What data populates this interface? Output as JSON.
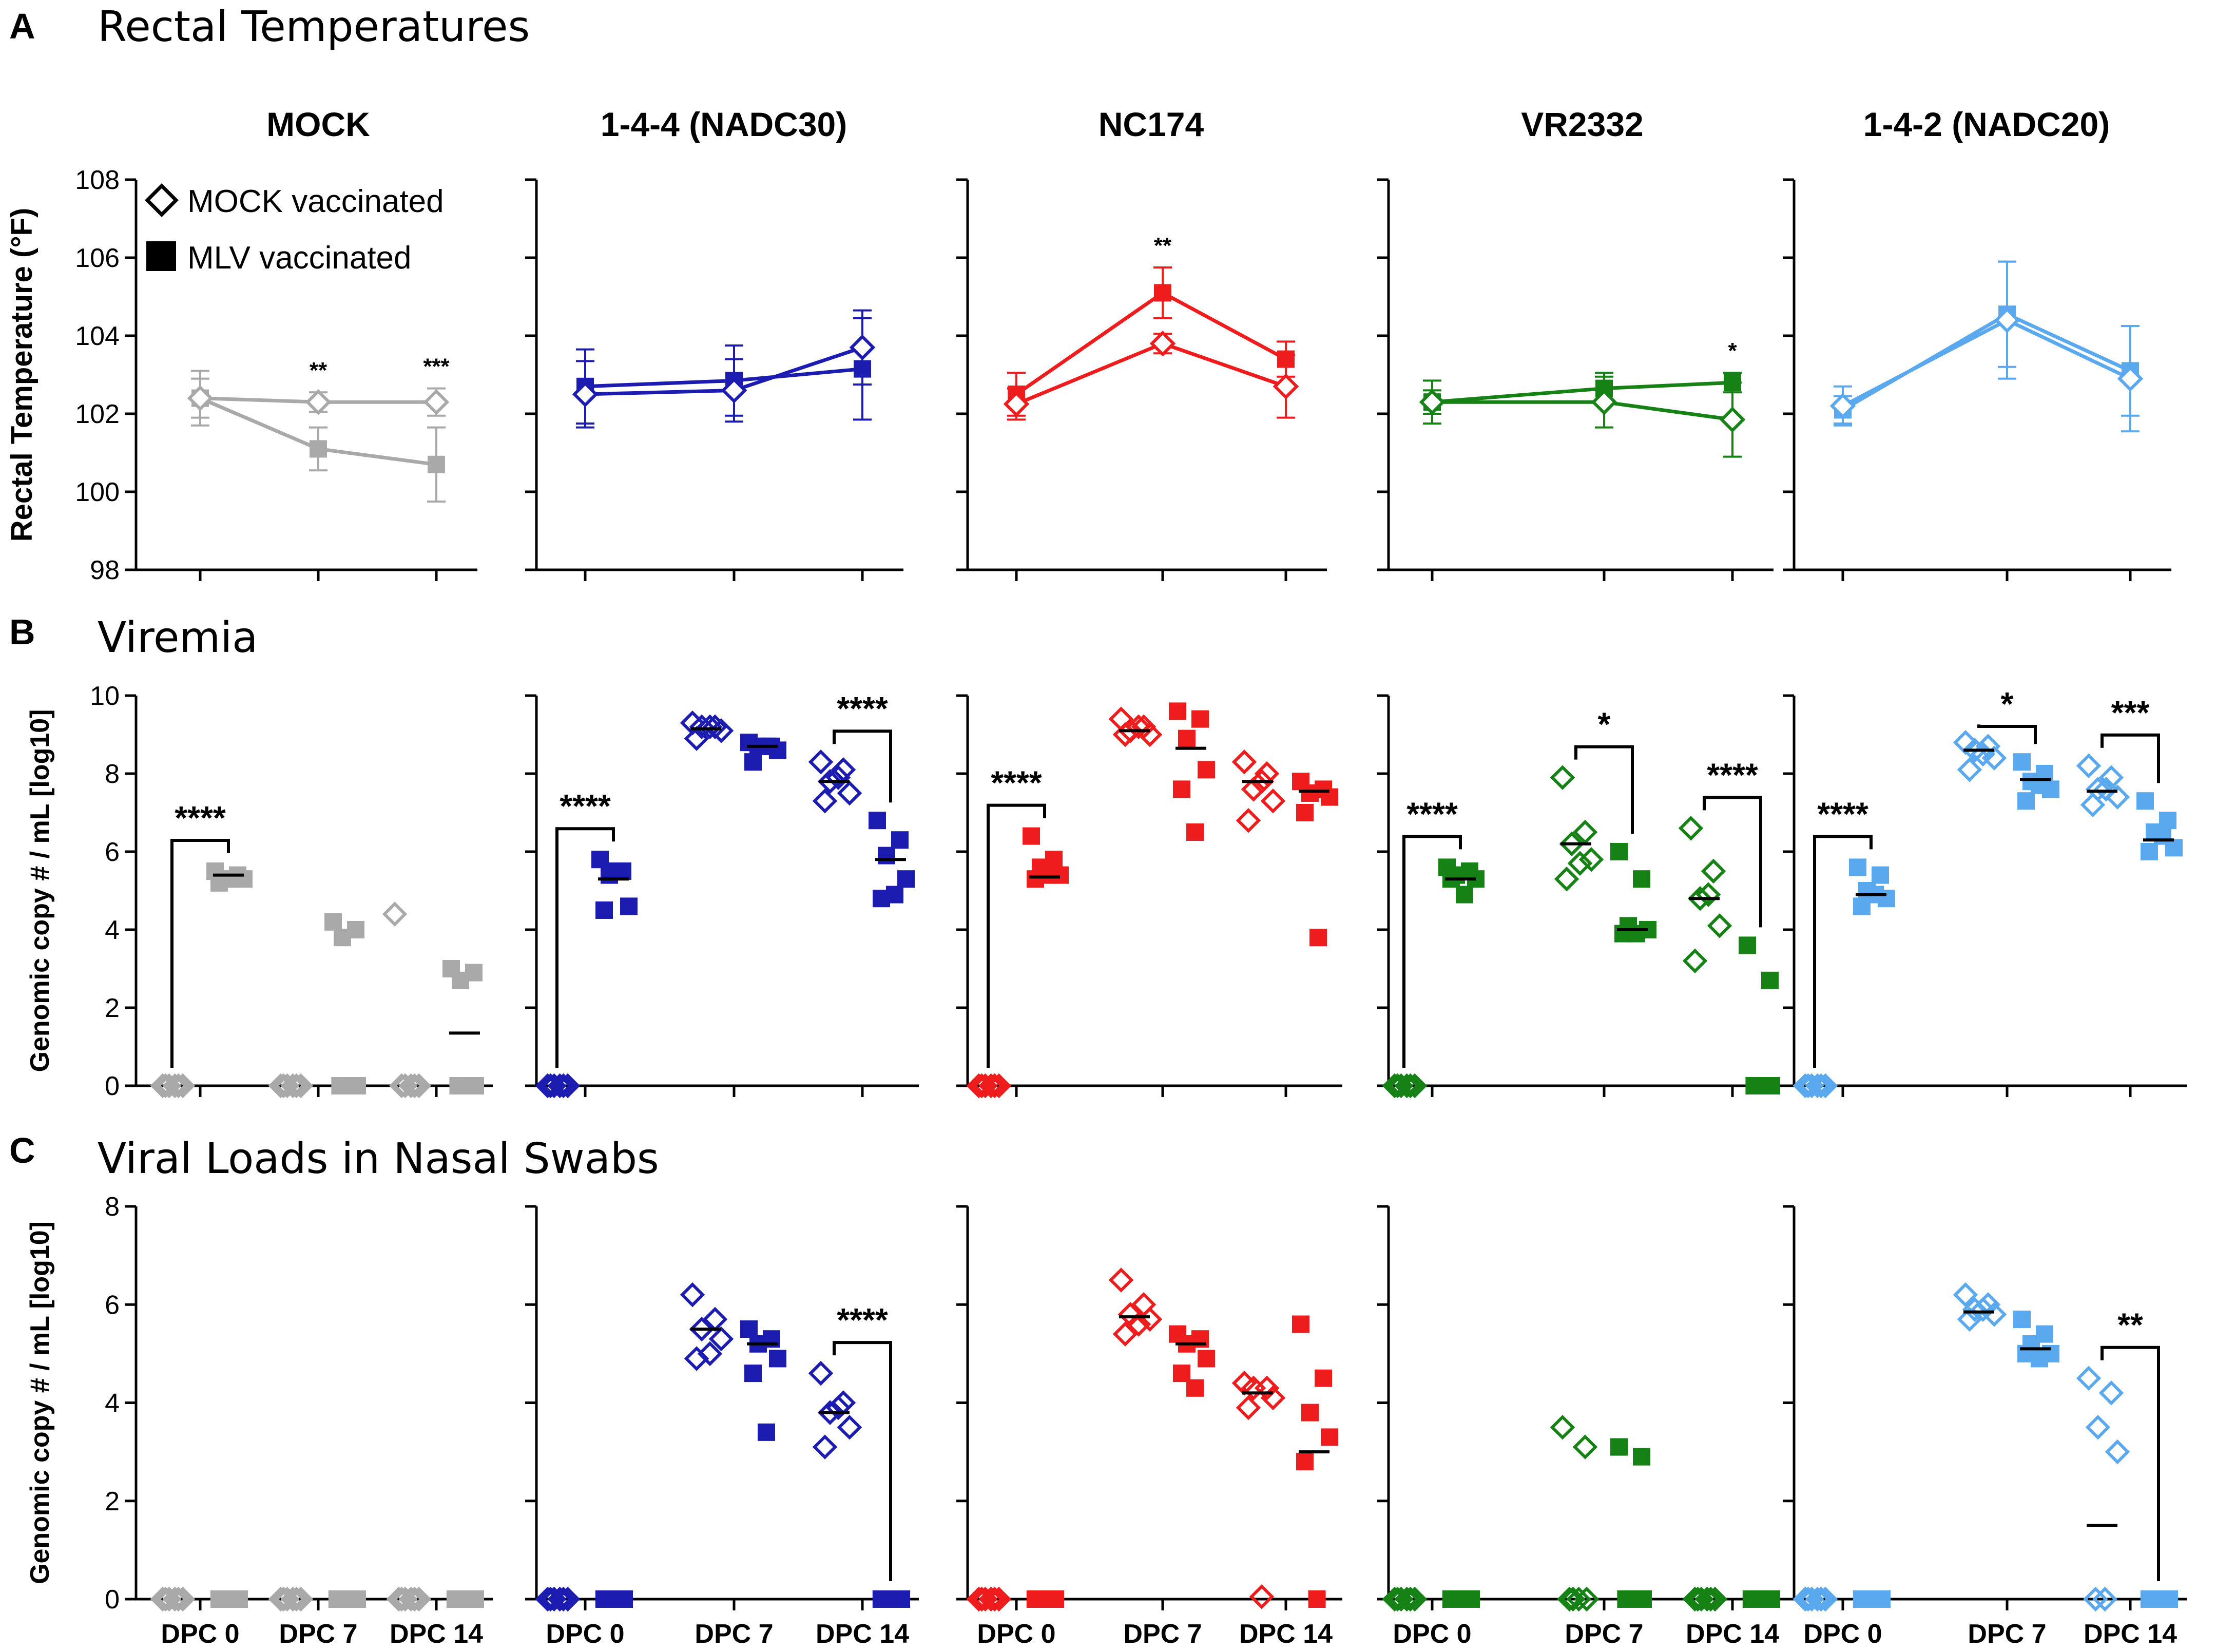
{
  "panel_labels": {
    "a": "A",
    "b": "B",
    "c": "C"
  },
  "panel_titles": {
    "a": "Rectal Temperatures",
    "b": "Viremia",
    "c": "Viral Loads in Nasal Swabs"
  },
  "legend": {
    "mock": "MOCK vaccinated",
    "mlv": "MLV   vaccinated"
  },
  "chart_data": [
    {
      "type": "line",
      "panel": "A",
      "title": "Rectal Temperatures",
      "ylabel": "Rectal  Temperature (°F)",
      "ylim": [
        98,
        108
      ],
      "yticks": [
        98,
        100,
        102,
        104,
        106,
        108
      ],
      "x": [
        "DPC 0",
        "DPC 7",
        "DPC 14"
      ],
      "groups": [
        {
          "name": "MOCK",
          "color": "#a9a9a9",
          "mock": [
            102.4,
            102.3,
            102.3
          ],
          "mock_err": [
            0.5,
            0.25,
            0.35
          ],
          "mlv": [
            102.4,
            101.1,
            100.7
          ],
          "mlv_err": [
            0.7,
            0.55,
            0.95
          ],
          "stars": [
            "",
            "**",
            "***"
          ]
        },
        {
          "name": "1-4-4 (NADC30)",
          "color": "#1c1cb0",
          "mock": [
            102.5,
            102.6,
            103.7
          ],
          "mock_err": [
            0.85,
            0.8,
            0.95
          ],
          "mlv": [
            102.7,
            102.85,
            103.15
          ],
          "mlv_err": [
            0.95,
            0.9,
            1.3
          ],
          "stars": [
            "",
            "",
            ""
          ]
        },
        {
          "name": "NC174",
          "color": "#ee1c1c",
          "mock": [
            102.25,
            103.8,
            102.7
          ],
          "mock_err": [
            0.4,
            0.25,
            0.8
          ],
          "mlv": [
            102.5,
            105.1,
            103.4
          ],
          "mlv_err": [
            0.55,
            0.65,
            0.45
          ],
          "stars": [
            "",
            "**",
            ""
          ]
        },
        {
          "name": "VR2332",
          "color": "#168216",
          "mock": [
            102.3,
            102.3,
            101.85
          ],
          "mock_err": [
            0.55,
            0.65,
            0.95
          ],
          "mlv": [
            102.3,
            102.65,
            102.8
          ],
          "mlv_err": [
            0.3,
            0.4,
            0.25
          ],
          "stars": [
            "",
            "",
            "*"
          ]
        },
        {
          "name": "1-4-2 (NADC20)",
          "color": "#5aa8ee",
          "mock": [
            102.2,
            104.4,
            102.9
          ],
          "mock_err": [
            0.5,
            1.5,
            1.35
          ],
          "mlv": [
            102.1,
            104.55,
            103.1
          ],
          "mlv_err": [
            0.35,
            1.35,
            1.15
          ],
          "stars": [
            "",
            "",
            ""
          ]
        }
      ]
    },
    {
      "type": "scatter",
      "panel": "B",
      "title": "Viremia",
      "ylabel": "Genomic copy # / mL [log10]",
      "ylim": [
        0,
        10
      ],
      "yticks": [
        0,
        2,
        4,
        6,
        8,
        10
      ],
      "x": [
        "DPC 0",
        "DPC 7",
        "DPC 14"
      ],
      "groups": [
        {
          "name": "MOCK",
          "color": "#a9a9a9",
          "mock": [
            [
              0,
              0,
              0,
              0,
              0,
              0
            ],
            [
              0,
              0,
              0,
              0,
              0,
              0
            ],
            [
              4.4,
              0,
              0,
              0,
              0,
              0
            ]
          ],
          "mlv": [
            [
              5.5,
              5.4,
              5.3,
              5.3,
              5.2,
              5.3
            ],
            [
              4.2,
              4.0,
              3.8,
              0,
              0,
              0
            ],
            [
              3.0,
              2.9,
              2.7,
              0,
              0,
              0
            ]
          ],
          "mock_mean": [
            0,
            0,
            0
          ],
          "mlv_mean": [
            5.4,
            0,
            1.35
          ],
          "brackets": [
            {
              "at": 0,
              "stars": "****"
            }
          ]
        },
        {
          "name": "1-4-4 (NADC30)",
          "color": "#1c1cb0",
          "mock": [
            [
              0,
              0,
              0,
              0,
              0,
              0
            ],
            [
              9.3,
              9.2,
              9.2,
              9.1,
              8.9,
              9.2
            ],
            [
              8.3,
              8.1,
              7.8,
              7.5,
              7.3,
              7.9
            ]
          ],
          "mlv": [
            [
              5.8,
              5.5,
              5.4,
              4.6,
              4.5,
              5.5
            ],
            [
              8.8,
              8.7,
              8.7,
              8.6,
              8.3,
              8.7
            ],
            [
              6.8,
              6.3,
              5.9,
              5.3,
              4.8,
              4.9
            ]
          ],
          "mock_mean": [
            0,
            9.15,
            7.8
          ],
          "mlv_mean": [
            5.3,
            8.7,
            5.8
          ],
          "brackets": [
            {
              "at": 0,
              "stars": "****"
            },
            {
              "at": 2,
              "stars": "****"
            }
          ]
        },
        {
          "name": "NC174",
          "color": "#ee1c1c",
          "mock": [
            [
              0,
              0,
              0,
              0,
              0,
              0
            ],
            [
              9.4,
              9.2,
              9.1,
              9.0,
              9.0,
              9.2
            ],
            [
              8.3,
              8.0,
              7.6,
              7.3,
              6.8,
              7.8
            ]
          ],
          "mlv": [
            [
              6.4,
              5.8,
              5.6,
              5.4,
              5.3,
              5.4
            ],
            [
              9.6,
              9.4,
              8.9,
              8.1,
              7.6,
              6.5
            ],
            [
              7.8,
              7.6,
              7.5,
              7.4,
              7.0,
              3.8
            ]
          ],
          "mock_mean": [
            0,
            9.1,
            7.8
          ],
          "mlv_mean": [
            5.35,
            8.65,
            7.55
          ],
          "brackets": [
            {
              "at": 0,
              "stars": "****"
            }
          ]
        },
        {
          "name": "VR2332",
          "color": "#168216",
          "mock": [
            [
              0,
              0,
              0,
              0,
              0,
              0
            ],
            [
              7.9,
              6.5,
              6.2,
              5.8,
              5.3,
              5.7
            ],
            [
              6.6,
              5.5,
              4.8,
              4.1,
              3.2,
              4.9
            ]
          ],
          "mlv": [
            [
              5.6,
              5.5,
              5.4,
              5.3,
              5.3,
              4.9
            ],
            [
              6.0,
              5.3,
              4.1,
              4.0,
              3.9,
              3.9
            ],
            [
              3.6,
              2.7,
              0,
              0,
              0,
              0
            ]
          ],
          "mock_mean": [
            0,
            6.2,
            4.8
          ],
          "mlv_mean": [
            5.3,
            4.0,
            0
          ],
          "brackets": [
            {
              "at": 0,
              "stars": "****"
            },
            {
              "at": 1,
              "stars": "*"
            },
            {
              "at": 2,
              "stars": "****"
            }
          ]
        },
        {
          "name": "1-4-2 (NADC20)",
          "color": "#5aa8ee",
          "mock": [
            [
              0,
              0,
              0,
              0,
              0,
              0
            ],
            [
              8.8,
              8.7,
              8.6,
              8.4,
              8.1,
              8.5
            ],
            [
              8.2,
              7.9,
              7.6,
              7.4,
              7.2,
              7.6
            ]
          ],
          "mlv": [
            [
              5.6,
              5.4,
              5.0,
              4.8,
              4.6,
              4.9
            ],
            [
              8.3,
              8.0,
              7.8,
              7.6,
              7.3,
              7.7
            ],
            [
              7.3,
              6.8,
              6.5,
              6.1,
              6.0,
              6.4
            ]
          ],
          "mock_mean": [
            0,
            8.6,
            7.55
          ],
          "mlv_mean": [
            4.9,
            7.85,
            6.3
          ],
          "brackets": [
            {
              "at": 0,
              "stars": "****"
            },
            {
              "at": 1,
              "stars": "*"
            },
            {
              "at": 2,
              "stars": "***"
            }
          ]
        }
      ]
    },
    {
      "type": "scatter",
      "panel": "C",
      "title": "Viral Loads in Nasal Swabs",
      "ylabel": "Genomic copy # / mL [log10]",
      "ylim": [
        0,
        8
      ],
      "yticks": [
        0,
        2,
        4,
        6,
        8
      ],
      "x": [
        "DPC 0",
        "DPC 7",
        "DPC 14"
      ],
      "groups": [
        {
          "name": "MOCK",
          "color": "#a9a9a9",
          "mock": [
            [
              0,
              0,
              0,
              0,
              0,
              0
            ],
            [
              0,
              0,
              0,
              0,
              0,
              0
            ],
            [
              0,
              0,
              0,
              0,
              0,
              0
            ]
          ],
          "mlv": [
            [
              0,
              0,
              0,
              0,
              0,
              0
            ],
            [
              0,
              0,
              0,
              0,
              0,
              0
            ],
            [
              0,
              0,
              0,
              0,
              0,
              0
            ]
          ],
          "mock_mean": [
            0,
            0,
            0
          ],
          "mlv_mean": [
            0,
            0,
            0
          ],
          "brackets": []
        },
        {
          "name": "1-4-4 (NADC30)",
          "color": "#1c1cb0",
          "mock": [
            [
              0,
              0,
              0,
              0,
              0,
              0
            ],
            [
              6.2,
              5.7,
              5.5,
              5.3,
              4.9,
              5.0
            ],
            [
              4.6,
              4.0,
              3.8,
              3.5,
              3.1,
              3.9
            ]
          ],
          "mlv": [
            [
              0,
              0,
              0,
              0,
              0,
              0
            ],
            [
              5.5,
              5.3,
              5.2,
              4.9,
              4.6,
              3.4
            ],
            [
              0,
              0,
              0,
              0,
              0,
              0
            ]
          ],
          "mock_mean": [
            0,
            5.5,
            3.8
          ],
          "mlv_mean": [
            0,
            5.2,
            0
          ],
          "brackets": [
            {
              "at": 2,
              "stars": "****"
            }
          ]
        },
        {
          "name": "NC174",
          "color": "#ee1c1c",
          "mock": [
            [
              0,
              0,
              0,
              0,
              0,
              0
            ],
            [
              6.5,
              6.0,
              5.8,
              5.7,
              5.4,
              5.6
            ],
            [
              4.4,
              4.3,
              4.3,
              4.1,
              3.9,
              0.05
            ]
          ],
          "mlv": [
            [
              0,
              0,
              0,
              0,
              0,
              0
            ],
            [
              5.4,
              5.3,
              5.2,
              4.9,
              4.6,
              4.3
            ],
            [
              5.6,
              4.5,
              3.8,
              3.3,
              2.8,
              0
            ]
          ],
          "mock_mean": [
            0,
            5.75,
            4.2
          ],
          "mlv_mean": [
            0,
            5.2,
            3.0
          ],
          "brackets": []
        },
        {
          "name": "VR2332",
          "color": "#168216",
          "mock": [
            [
              0,
              0,
              0,
              0,
              0,
              0
            ],
            [
              3.5,
              3.1,
              0,
              0,
              0,
              0
            ],
            [
              0,
              0,
              0,
              0,
              0,
              0
            ]
          ],
          "mlv": [
            [
              0,
              0,
              0,
              0,
              0,
              0
            ],
            [
              3.1,
              2.9,
              0,
              0,
              0,
              0
            ],
            [
              0,
              0,
              0,
              0,
              0,
              0
            ]
          ],
          "mock_mean": [
            0,
            0,
            0
          ],
          "mlv_mean": [
            0,
            0,
            0
          ],
          "brackets": []
        },
        {
          "name": "1-4-2 (NADC20)",
          "color": "#5aa8ee",
          "mock": [
            [
              0,
              0,
              0,
              0,
              0,
              0
            ],
            [
              6.2,
              6.0,
              5.9,
              5.8,
              5.7,
              5.9
            ],
            [
              4.5,
              4.2,
              3.5,
              3.0,
              0,
              0
            ]
          ],
          "mlv": [
            [
              0,
              0,
              0,
              0,
              0,
              0
            ],
            [
              5.7,
              5.4,
              5.2,
              5.0,
              5.0,
              4.9
            ],
            [
              0,
              0,
              0,
              0,
              0,
              0
            ]
          ],
          "mock_mean": [
            0,
            5.85,
            1.5
          ],
          "mlv_mean": [
            0,
            5.1,
            0
          ],
          "brackets": [
            {
              "at": 2,
              "stars": "**"
            }
          ]
        }
      ]
    }
  ]
}
